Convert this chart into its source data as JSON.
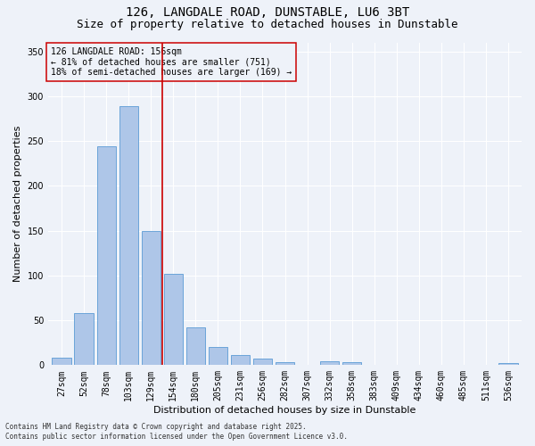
{
  "title": "126, LANGDALE ROAD, DUNSTABLE, LU6 3BT",
  "subtitle": "Size of property relative to detached houses in Dunstable",
  "xlabel": "Distribution of detached houses by size in Dunstable",
  "ylabel": "Number of detached properties",
  "footnote1": "Contains HM Land Registry data © Crown copyright and database right 2025.",
  "footnote2": "Contains public sector information licensed under the Open Government Licence v3.0.",
  "annotation_line1": "126 LANGDALE ROAD: 156sqm",
  "annotation_line2": "← 81% of detached houses are smaller (751)",
  "annotation_line3": "18% of semi-detached houses are larger (169) →",
  "bar_color": "#aec6e8",
  "bar_edge_color": "#5b9bd5",
  "vline_color": "#cc0000",
  "vline_x": 4.5,
  "categories": [
    "27sqm",
    "52sqm",
    "78sqm",
    "103sqm",
    "129sqm",
    "154sqm",
    "180sqm",
    "205sqm",
    "231sqm",
    "256sqm",
    "282sqm",
    "307sqm",
    "332sqm",
    "358sqm",
    "383sqm",
    "409sqm",
    "434sqm",
    "460sqm",
    "485sqm",
    "511sqm",
    "536sqm"
  ],
  "values": [
    8,
    58,
    244,
    289,
    150,
    102,
    42,
    20,
    11,
    7,
    3,
    0,
    4,
    3,
    0,
    0,
    0,
    0,
    0,
    0,
    2
  ],
  "ylim": [
    0,
    360
  ],
  "yticks": [
    0,
    50,
    100,
    150,
    200,
    250,
    300,
    350
  ],
  "bg_color": "#eef2f9",
  "grid_color": "#ffffff",
  "title_fontsize": 10,
  "subtitle_fontsize": 9,
  "ylabel_fontsize": 8,
  "xlabel_fontsize": 8,
  "tick_fontsize": 7,
  "annot_fontsize": 7,
  "footnote_fontsize": 5.5
}
